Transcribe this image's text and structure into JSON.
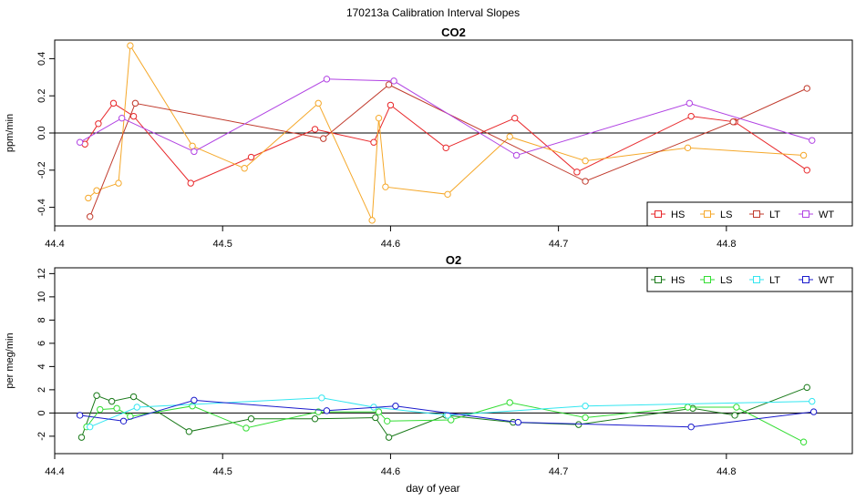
{
  "figure_title": "170213a   Calibration Interval Slopes",
  "xlabel": "day of year",
  "chart_data": [
    {
      "type": "line",
      "title": "CO2",
      "ylabel": "ppm/min",
      "xlim": [
        44.4,
        44.875
      ],
      "ylim": [
        -0.5,
        0.5
      ],
      "xticks": [
        44.4,
        44.5,
        44.6,
        44.7,
        44.8
      ],
      "xtick_labels": [
        "44.4",
        "44.5",
        "44.6",
        "44.7",
        "44.8"
      ],
      "yticks": [
        -0.4,
        -0.2,
        0.0,
        0.2,
        0.4
      ],
      "ytick_labels": [
        "-0.4",
        "-0.2",
        "0.0",
        "0.2",
        "0.4"
      ],
      "zero_line": 0,
      "legend_position": "bottom-right",
      "series": [
        {
          "name": "HS",
          "color": "#e8272a",
          "x": [
            44.418,
            44.426,
            44.435,
            44.447,
            44.481,
            44.517,
            44.555,
            44.59,
            44.6,
            44.633,
            44.674,
            44.711,
            44.779,
            44.805,
            44.848
          ],
          "y": [
            -0.06,
            0.05,
            0.16,
            0.09,
            -0.27,
            -0.13,
            0.02,
            -0.05,
            0.15,
            -0.08,
            0.08,
            -0.21,
            0.09,
            0.06,
            -0.2
          ]
        },
        {
          "name": "LS",
          "color": "#f5a82a",
          "x": [
            44.42,
            44.425,
            44.438,
            44.445,
            44.482,
            44.513,
            44.557,
            44.589,
            44.593,
            44.597,
            44.634,
            44.671,
            44.716,
            44.777,
            44.846
          ],
          "y": [
            -0.35,
            -0.31,
            -0.27,
            0.47,
            -0.07,
            -0.19,
            0.16,
            -0.47,
            0.08,
            -0.29,
            -0.33,
            -0.02,
            -0.15,
            -0.08,
            -0.12
          ]
        },
        {
          "name": "LT",
          "color": "#c0392b",
          "x": [
            44.421,
            44.448,
            44.56,
            44.599,
            44.716,
            44.804,
            44.848
          ],
          "y": [
            -0.45,
            0.16,
            -0.03,
            0.26,
            -0.26,
            0.06,
            0.24
          ]
        },
        {
          "name": "WT",
          "color": "#b143e3",
          "x": [
            44.415,
            44.44,
            44.483,
            44.562,
            44.602,
            44.675,
            44.778,
            44.851
          ],
          "y": [
            -0.05,
            0.08,
            -0.1,
            0.29,
            0.28,
            -0.12,
            0.16,
            -0.04
          ]
        }
      ]
    },
    {
      "type": "line",
      "title": "O2",
      "ylabel": "per meg/min",
      "xlim": [
        44.4,
        44.875
      ],
      "ylim": [
        -3.5,
        12.5
      ],
      "xticks": [
        44.4,
        44.5,
        44.6,
        44.7,
        44.8
      ],
      "xtick_labels": [
        "44.4",
        "44.5",
        "44.6",
        "44.7",
        "44.8"
      ],
      "yticks": [
        -2,
        0,
        2,
        4,
        6,
        8,
        10,
        12
      ],
      "ytick_labels": [
        "-2",
        "0",
        "2",
        "4",
        "6",
        "8",
        "10",
        "12"
      ],
      "zero_line": 0,
      "legend_position": "top-right",
      "series": [
        {
          "name": "HS",
          "color": "#1a7a1a",
          "x": [
            44.416,
            44.425,
            44.434,
            44.447,
            44.48,
            44.517,
            44.555,
            44.591,
            44.599,
            44.633,
            44.673,
            44.712,
            44.78,
            44.805,
            44.848
          ],
          "y": [
            -2.1,
            1.5,
            1.0,
            1.4,
            -1.6,
            -0.5,
            -0.5,
            -0.4,
            -2.1,
            -0.2,
            -0.8,
            -1.0,
            0.4,
            -0.2,
            2.2
          ]
        },
        {
          "name": "LS",
          "color": "#33dd33",
          "x": [
            44.419,
            44.427,
            44.437,
            44.445,
            44.482,
            44.514,
            44.557,
            44.593,
            44.598,
            44.636,
            44.671,
            44.716,
            44.777,
            44.806,
            44.846
          ],
          "y": [
            -1.2,
            0.3,
            0.4,
            -0.3,
            0.6,
            -1.3,
            0.1,
            0.1,
            -0.7,
            -0.6,
            0.9,
            -0.4,
            0.5,
            0.5,
            -2.5
          ]
        },
        {
          "name": "LT",
          "color": "#33e6f0",
          "x": [
            44.421,
            44.449,
            44.559,
            44.59,
            44.634,
            44.716,
            44.851
          ],
          "y": [
            -1.2,
            0.5,
            1.3,
            0.5,
            -0.2,
            0.6,
            1.0
          ]
        },
        {
          "name": "WT",
          "color": "#1a1acc",
          "x": [
            44.415,
            44.441,
            44.483,
            44.562,
            44.603,
            44.676,
            44.779,
            44.852
          ],
          "y": [
            -0.2,
            -0.7,
            1.1,
            0.2,
            0.6,
            -0.8,
            -1.2,
            0.1
          ]
        }
      ]
    }
  ]
}
